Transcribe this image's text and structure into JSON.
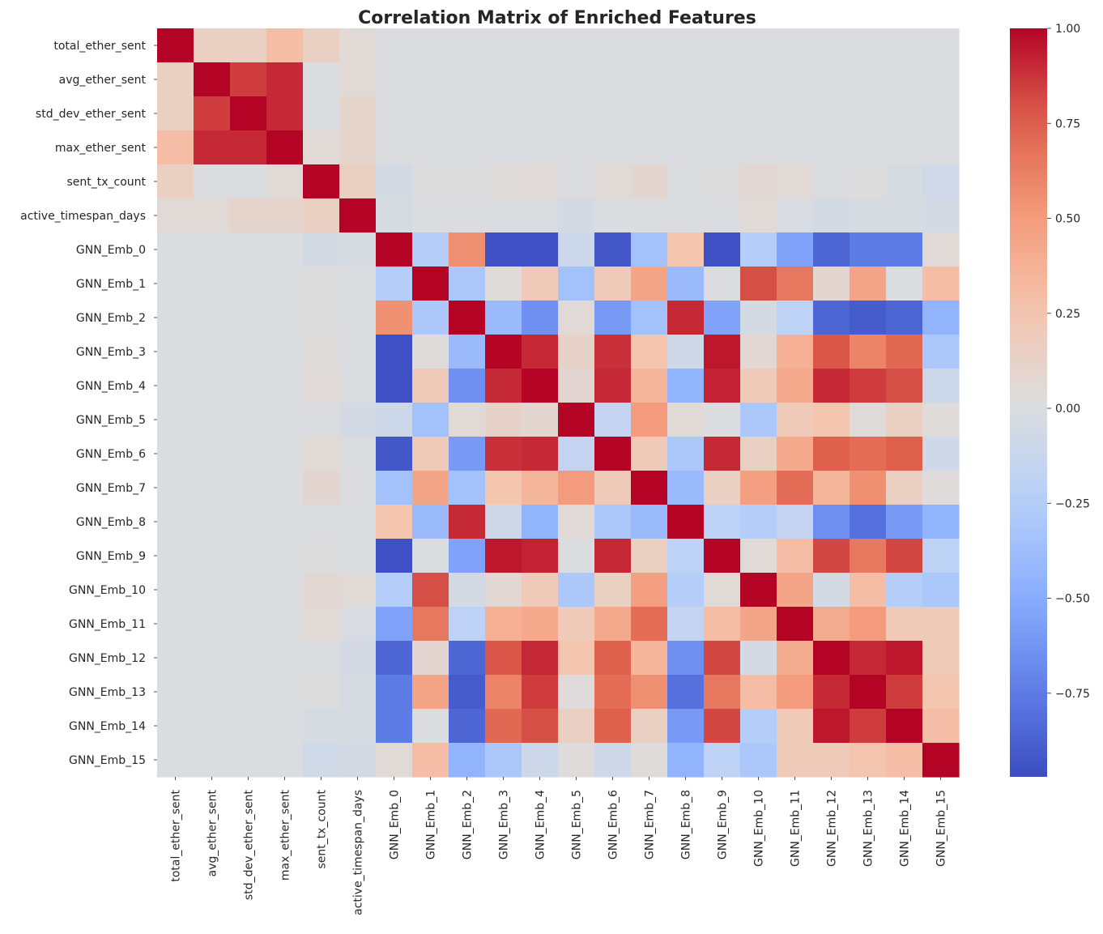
{
  "chart_data": {
    "type": "heatmap",
    "title": "Correlation Matrix of Enriched Features",
    "xlabel": "",
    "ylabel": "",
    "labels": [
      "total_ether_sent",
      "avg_ether_sent",
      "std_dev_ether_sent",
      "max_ether_sent",
      "sent_tx_count",
      "active_timespan_days",
      "GNN_Emb_0",
      "GNN_Emb_1",
      "GNN_Emb_2",
      "GNN_Emb_3",
      "GNN_Emb_4",
      "GNN_Emb_5",
      "GNN_Emb_6",
      "GNN_Emb_7",
      "GNN_Emb_8",
      "GNN_Emb_9",
      "GNN_Emb_10",
      "GNN_Emb_11",
      "GNN_Emb_12",
      "GNN_Emb_13",
      "GNN_Emb_14",
      "GNN_Emb_15"
    ],
    "matrix": [
      [
        1.0,
        0.15,
        0.15,
        0.3,
        0.15,
        0.05,
        0.0,
        0.0,
        0.0,
        0.0,
        0.0,
        0.0,
        0.0,
        0.0,
        0.0,
        0.0,
        0.0,
        0.0,
        0.0,
        0.0,
        0.0,
        0.0
      ],
      [
        0.15,
        1.0,
        0.85,
        0.9,
        0.0,
        0.05,
        0.0,
        0.0,
        0.0,
        0.0,
        0.0,
        0.0,
        0.0,
        0.0,
        0.0,
        0.0,
        0.0,
        0.0,
        0.0,
        0.0,
        0.0,
        0.0
      ],
      [
        0.15,
        0.85,
        1.0,
        0.9,
        0.0,
        0.1,
        0.0,
        0.0,
        0.0,
        0.0,
        0.0,
        0.0,
        0.0,
        0.0,
        0.0,
        0.0,
        0.0,
        0.0,
        0.0,
        0.0,
        0.0,
        0.0
      ],
      [
        0.3,
        0.9,
        0.9,
        1.0,
        0.05,
        0.1,
        0.0,
        0.0,
        0.0,
        0.0,
        0.0,
        0.0,
        0.0,
        0.0,
        0.0,
        0.0,
        0.0,
        0.0,
        0.0,
        0.0,
        0.0,
        0.0
      ],
      [
        0.15,
        0.0,
        0.0,
        0.05,
        1.0,
        0.15,
        -0.05,
        0.02,
        0.02,
        0.03,
        0.04,
        0.0,
        0.05,
        0.08,
        0.0,
        0.02,
        0.07,
        0.05,
        0.0,
        0.02,
        -0.03,
        -0.07
      ],
      [
        0.05,
        0.05,
        0.1,
        0.1,
        0.15,
        1.0,
        -0.03,
        0.0,
        0.0,
        0.0,
        0.0,
        -0.05,
        0.0,
        0.0,
        0.0,
        0.0,
        0.05,
        -0.02,
        -0.05,
        -0.03,
        -0.03,
        -0.05
      ],
      [
        0.0,
        0.0,
        0.0,
        0.0,
        -0.05,
        -0.03,
        1.0,
        -0.25,
        0.55,
        -0.95,
        -0.95,
        -0.1,
        -0.92,
        -0.35,
        0.25,
        -0.95,
        -0.25,
        -0.55,
        -0.85,
        -0.75,
        -0.75,
        0.05
      ],
      [
        0.0,
        0.0,
        0.0,
        0.0,
        0.02,
        0.0,
        -0.25,
        1.0,
        -0.3,
        0.03,
        0.2,
        -0.35,
        0.2,
        0.45,
        -0.4,
        0.0,
        0.8,
        0.65,
        0.08,
        0.45,
        0.0,
        0.3
      ],
      [
        0.0,
        0.0,
        0.0,
        0.0,
        0.02,
        0.0,
        0.55,
        -0.3,
        1.0,
        -0.4,
        -0.65,
        0.05,
        -0.6,
        -0.35,
        0.9,
        -0.55,
        -0.05,
        -0.2,
        -0.85,
        -0.9,
        -0.85,
        -0.45
      ],
      [
        0.0,
        0.0,
        0.0,
        0.0,
        0.03,
        0.0,
        -0.95,
        0.03,
        -0.4,
        1.0,
        0.9,
        0.12,
        0.88,
        0.25,
        -0.08,
        0.95,
        0.07,
        0.38,
        0.78,
        0.6,
        0.72,
        -0.3
      ],
      [
        0.0,
        0.0,
        0.0,
        0.0,
        0.04,
        0.0,
        -0.95,
        0.2,
        -0.65,
        0.9,
        1.0,
        0.08,
        0.9,
        0.35,
        -0.45,
        0.92,
        0.2,
        0.42,
        0.9,
        0.85,
        0.8,
        -0.1
      ],
      [
        0.0,
        0.0,
        0.0,
        0.0,
        0.0,
        -0.05,
        -0.1,
        -0.35,
        0.05,
        0.12,
        0.08,
        1.0,
        -0.15,
        0.5,
        0.05,
        0.0,
        -0.3,
        0.2,
        0.25,
        0.03,
        0.15,
        0.03
      ],
      [
        0.0,
        0.0,
        0.0,
        0.0,
        0.05,
        0.0,
        -0.92,
        0.2,
        -0.6,
        0.88,
        0.9,
        -0.15,
        1.0,
        0.2,
        -0.3,
        0.9,
        0.15,
        0.42,
        0.75,
        0.7,
        0.75,
        -0.08
      ],
      [
        0.0,
        0.0,
        0.0,
        0.0,
        0.08,
        0.0,
        -0.35,
        0.45,
        -0.35,
        0.25,
        0.35,
        0.5,
        0.2,
        1.0,
        -0.4,
        0.15,
        0.48,
        0.7,
        0.35,
        0.55,
        0.15,
        0.03
      ],
      [
        0.0,
        0.0,
        0.0,
        0.0,
        0.0,
        0.0,
        0.25,
        -0.4,
        0.9,
        -0.08,
        -0.45,
        0.05,
        -0.3,
        -0.4,
        1.0,
        -0.2,
        -0.25,
        -0.15,
        -0.65,
        -0.8,
        -0.6,
        -0.45
      ],
      [
        0.0,
        0.0,
        0.0,
        0.0,
        0.02,
        0.0,
        -0.95,
        0.0,
        -0.55,
        0.95,
        0.92,
        0.0,
        0.9,
        0.15,
        -0.2,
        1.0,
        0.05,
        0.3,
        0.82,
        0.65,
        0.82,
        -0.2
      ],
      [
        0.0,
        0.0,
        0.0,
        0.0,
        0.07,
        0.05,
        -0.25,
        0.8,
        -0.05,
        0.07,
        0.2,
        -0.3,
        0.15,
        0.48,
        -0.25,
        0.05,
        1.0,
        0.45,
        -0.05,
        0.3,
        -0.25,
        -0.3
      ],
      [
        0.0,
        0.0,
        0.0,
        0.0,
        0.05,
        -0.02,
        -0.55,
        0.65,
        -0.2,
        0.38,
        0.42,
        0.2,
        0.42,
        0.7,
        -0.15,
        0.3,
        0.45,
        1.0,
        0.4,
        0.5,
        0.2,
        0.2
      ],
      [
        0.0,
        0.0,
        0.0,
        0.0,
        0.0,
        -0.05,
        -0.85,
        0.08,
        -0.85,
        0.78,
        0.9,
        0.25,
        0.75,
        0.35,
        -0.65,
        0.82,
        -0.05,
        0.4,
        1.0,
        0.9,
        0.95,
        0.2
      ],
      [
        0.0,
        0.0,
        0.0,
        0.0,
        0.02,
        -0.03,
        -0.75,
        0.45,
        -0.9,
        0.6,
        0.85,
        0.03,
        0.7,
        0.55,
        -0.8,
        0.65,
        0.3,
        0.5,
        0.9,
        1.0,
        0.85,
        0.25
      ],
      [
        0.0,
        0.0,
        0.0,
        0.0,
        -0.03,
        -0.03,
        -0.75,
        0.0,
        -0.85,
        0.72,
        0.8,
        0.15,
        0.75,
        0.15,
        -0.6,
        0.82,
        -0.25,
        0.2,
        0.95,
        0.85,
        1.0,
        0.3
      ],
      [
        0.0,
        0.0,
        0.0,
        0.0,
        -0.07,
        -0.05,
        0.05,
        0.3,
        -0.45,
        -0.3,
        -0.1,
        0.03,
        -0.08,
        0.03,
        -0.45,
        -0.2,
        -0.3,
        0.2,
        0.2,
        0.25,
        0.3,
        1.0
      ]
    ],
    "vmin": -0.97,
    "vmax": 1.0,
    "colormap": "coolwarm",
    "colorbar_ticks": [
      {
        "value": 1.0,
        "label": "1.00"
      },
      {
        "value": 0.75,
        "label": "0.75"
      },
      {
        "value": 0.5,
        "label": "0.50"
      },
      {
        "value": 0.25,
        "label": "0.25"
      },
      {
        "value": 0.0,
        "label": "0.00"
      },
      {
        "value": -0.25,
        "label": "−0.25"
      },
      {
        "value": -0.5,
        "label": "−0.50"
      },
      {
        "value": -0.75,
        "label": "−0.75"
      }
    ],
    "legend": "colorbar-right"
  }
}
